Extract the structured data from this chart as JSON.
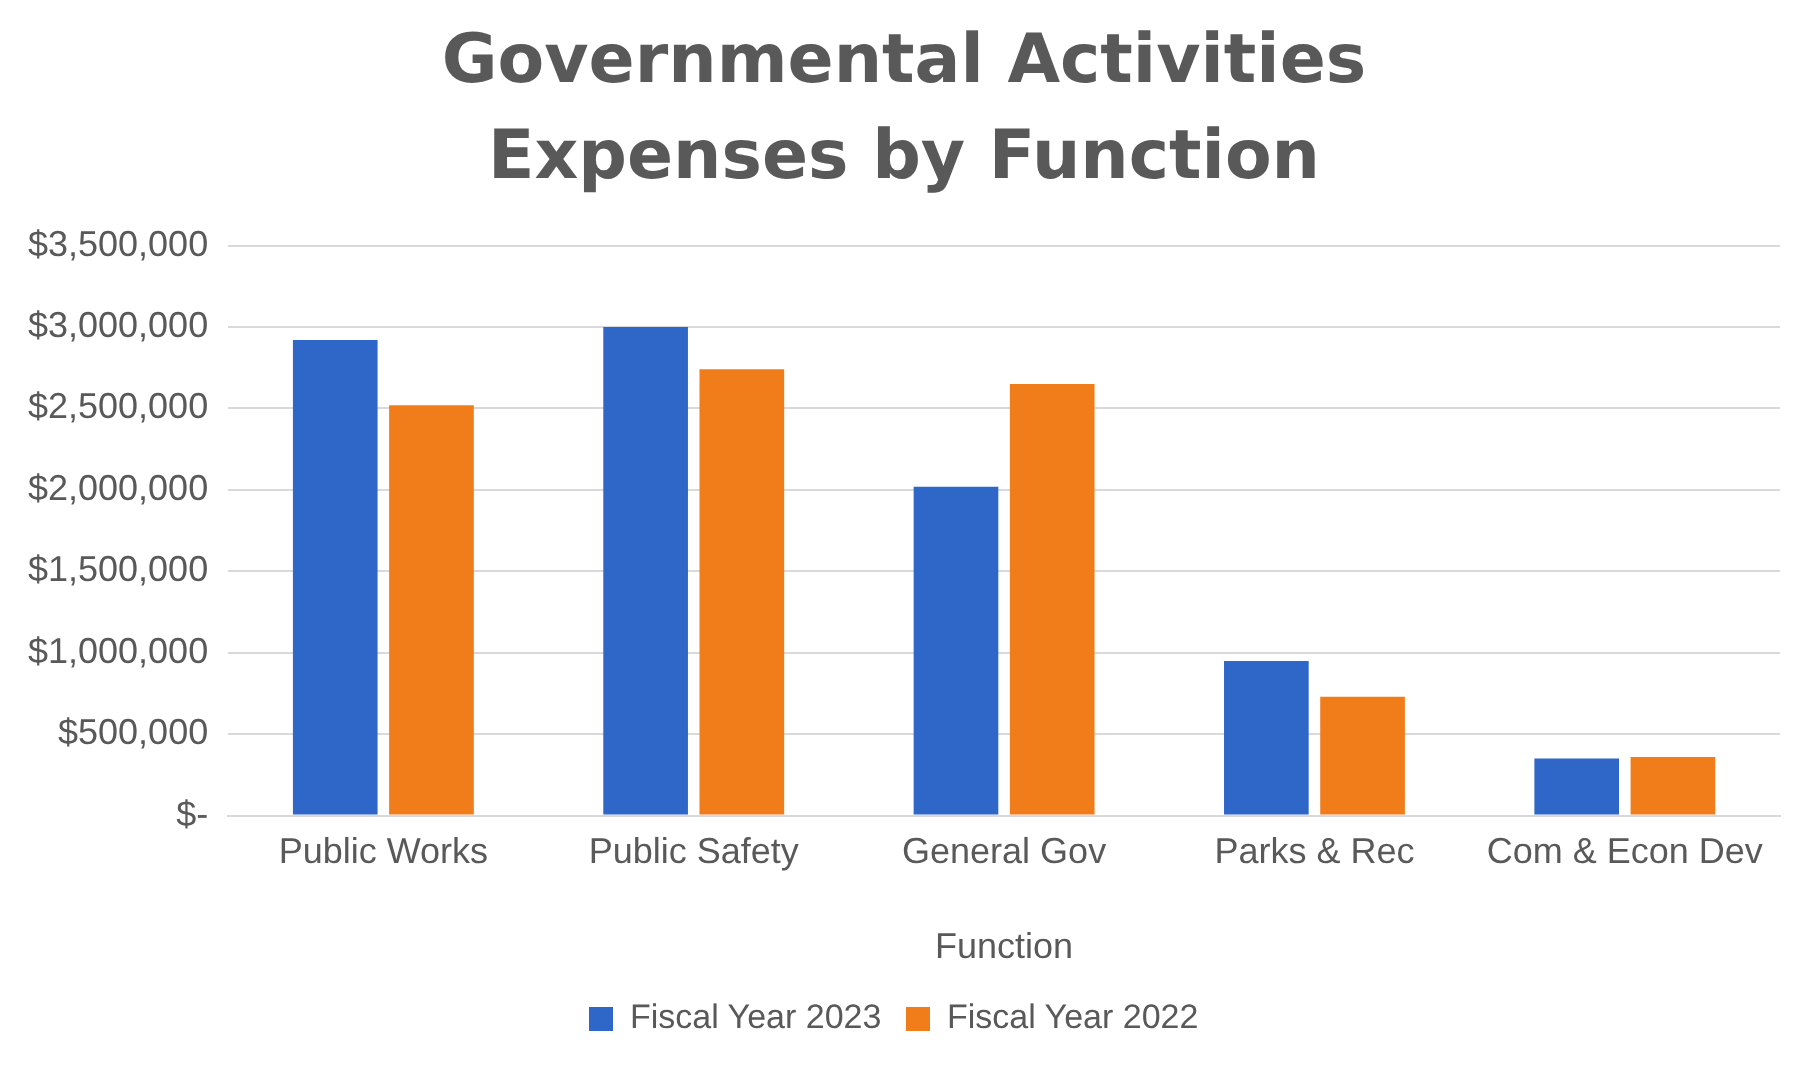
{
  "chart_data": {
    "type": "bar",
    "title": "Governmental Activities Expenses by Function",
    "xlabel": "Function",
    "categories": [
      "Public Works",
      "Public Safety",
      "General Gov",
      "Parks & Rec",
      "Com & Econ Dev"
    ],
    "series": [
      {
        "name": "Fiscal Year 2023",
        "color": "#2f67c9",
        "values": [
          2920000,
          3000000,
          2020000,
          950000,
          350000
        ]
      },
      {
        "name": "Fiscal Year 2022",
        "color": "#f07c1a",
        "values": [
          2520000,
          2740000,
          2650000,
          730000,
          360000
        ]
      }
    ],
    "ylim": [
      0,
      3500000
    ],
    "yticks": [
      {
        "value": 0,
        "label": "$-"
      },
      {
        "value": 500000,
        "label": "$500,000"
      },
      {
        "value": 1000000,
        "label": "$1,000,000"
      },
      {
        "value": 1500000,
        "label": "$1,500,000"
      },
      {
        "value": 2000000,
        "label": "$2,000,000"
      },
      {
        "value": 2500000,
        "label": "$2,500,000"
      },
      {
        "value": 3000000,
        "label": "$3,000,000"
      },
      {
        "value": 3500000,
        "label": "$3,500,000"
      }
    ],
    "grid": "y",
    "legend": "bottom"
  }
}
